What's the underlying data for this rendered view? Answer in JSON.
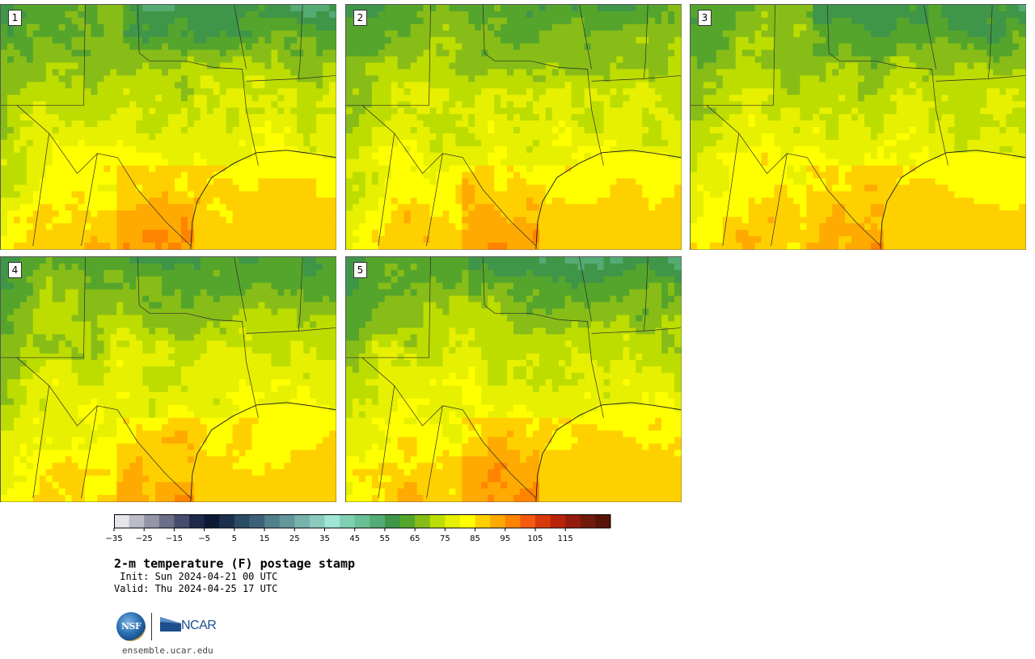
{
  "panels": [
    {
      "label": "1"
    },
    {
      "label": "2"
    },
    {
      "label": "3"
    },
    {
      "label": "4"
    },
    {
      "label": "5"
    }
  ],
  "colorbar": {
    "colors": [
      "#e6e6ea",
      "#bcbcc8",
      "#9496a8",
      "#6b6f88",
      "#464c6c",
      "#1f2a4a",
      "#0e1a33",
      "#1c2f4d",
      "#2b4a66",
      "#3d6178",
      "#51808c",
      "#63979c",
      "#77b2ac",
      "#8acbbd",
      "#9fe6d5",
      "#7fd0b0",
      "#6bbf94",
      "#55ab74",
      "#3f9648",
      "#55a52c",
      "#88bd18",
      "#bddd00",
      "#e6f000",
      "#ffff00",
      "#ffd000",
      "#ffaa00",
      "#ff8400",
      "#f55a10",
      "#d83a0c",
      "#b82409",
      "#951b0c",
      "#701a0c",
      "#5a1308"
    ],
    "ticks": [
      "−35",
      "−25",
      "−15",
      "−5",
      "5",
      "15",
      "25",
      "35",
      "45",
      "55",
      "65",
      "75",
      "85",
      "95",
      "105",
      "115"
    ]
  },
  "title": "2-m temperature (F) postage stamp",
  "init": " Init: Sun 2024-04-21 00 UTC",
  "valid": "Valid: Thu 2024-04-25 17 UTC",
  "logo": {
    "nsf": "NSF",
    "ncar": "NCAR"
  },
  "site": "ensemble.ucar.edu"
}
